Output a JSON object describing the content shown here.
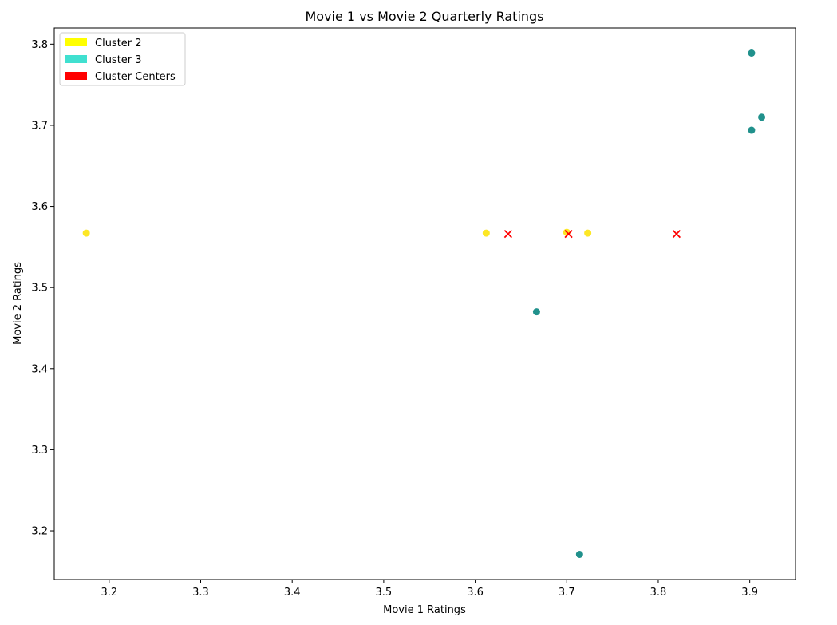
{
  "chart_data": {
    "type": "scatter",
    "title": "Movie 1 vs Movie 2 Quarterly Ratings",
    "xlabel": "Movie 1 Ratings",
    "ylabel": "Movie 2 Ratings",
    "xlim": [
      3.14,
      3.95
    ],
    "ylim": [
      3.14,
      3.82
    ],
    "x_ticks": [
      3.2,
      3.3,
      3.4,
      3.5,
      3.6,
      3.7,
      3.8,
      3.9
    ],
    "y_ticks": [
      3.2,
      3.3,
      3.4,
      3.5,
      3.6,
      3.7,
      3.8
    ],
    "grid": false,
    "legend_position": "top-left",
    "legend": [
      {
        "label": "Cluster 2",
        "color": "#ffff00"
      },
      {
        "label": "Cluster 3",
        "color": "#40e0d0"
      },
      {
        "label": "Cluster Centers",
        "color": "#ff0000"
      }
    ],
    "series": [
      {
        "color": "#fde725",
        "marker": "circle",
        "points": [
          {
            "x": 3.175,
            "y": 3.567
          },
          {
            "x": 3.612,
            "y": 3.567
          },
          {
            "x": 3.7,
            "y": 3.568
          },
          {
            "x": 3.723,
            "y": 3.567
          }
        ]
      },
      {
        "color": "#21918c",
        "marker": "circle",
        "points": [
          {
            "x": 3.902,
            "y": 3.789
          },
          {
            "x": 3.913,
            "y": 3.71
          },
          {
            "x": 3.902,
            "y": 3.694
          },
          {
            "x": 3.667,
            "y": 3.47
          },
          {
            "x": 3.714,
            "y": 3.171
          }
        ]
      },
      {
        "color": "#ff0000",
        "marker": "x",
        "points": [
          {
            "x": 3.636,
            "y": 3.566
          },
          {
            "x": 3.702,
            "y": 3.566
          },
          {
            "x": 3.82,
            "y": 3.566
          }
        ]
      }
    ]
  }
}
